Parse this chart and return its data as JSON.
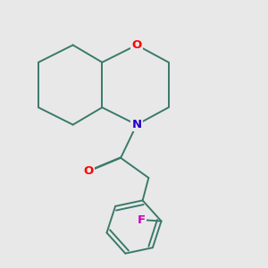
{
  "bg_color": "#e8e8e8",
  "bond_color": "#3a7a6a",
  "bond_width": 1.4,
  "atom_colors": {
    "O": "#ff0000",
    "N": "#2200cc",
    "F": "#cc00bb"
  },
  "font_size": 9.5
}
